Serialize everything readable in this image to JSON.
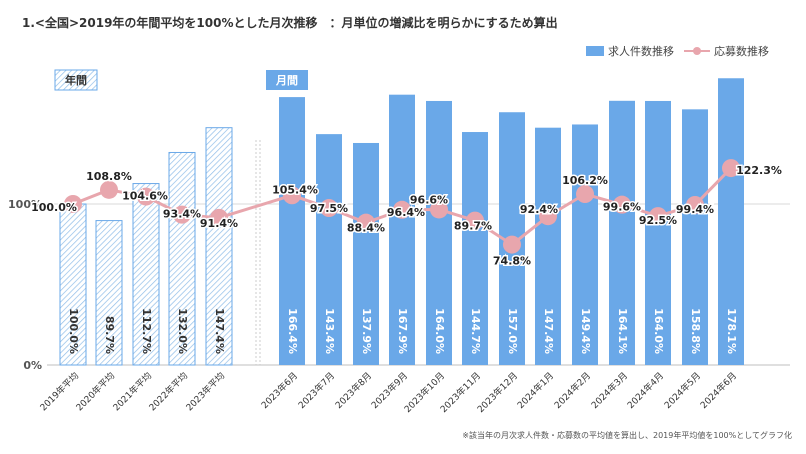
{
  "chart_data": {
    "type": "bar",
    "title": "1.<全国>2019年の年間平均を100%とした月次推移　：月単位の増減比を明らかにするため算出",
    "group_labels": [
      "年間",
      "月間"
    ],
    "y_tick_labels": [
      "0%",
      "100%"
    ],
    "ylim": [
      0,
      190
    ],
    "legend_position": "top-right",
    "grid": "horizontal",
    "categories": [
      "2019年平均",
      "2020年平均",
      "2021年平均",
      "2022年平均",
      "2023年平均",
      "2023年6月",
      "2023年7月",
      "2023年8月",
      "2023年9月",
      "2023年10月",
      "2023年11月",
      "2023年12月",
      "2024年1月",
      "2024年2月",
      "2024年3月",
      "2024年4月",
      "2024年5月",
      "2024年6月"
    ],
    "series": [
      {
        "name": "求人件数推移",
        "type": "bar",
        "color": "#6aa8e8",
        "values": [
          100.0,
          89.7,
          112.7,
          132.0,
          147.4,
          166.4,
          143.4,
          137.9,
          167.9,
          164.0,
          144.7,
          157.0,
          147.4,
          149.4,
          164.1,
          164.0,
          158.8,
          178.1
        ],
        "labels": [
          "100.0%",
          "89.7%",
          "112.7%",
          "132.0%",
          "147.4%",
          "166.4%",
          "143.4%",
          "137.9%",
          "167.9%",
          "164.0%",
          "144.7%",
          "157.0%",
          "147.4%",
          "149.4%",
          "164.1%",
          "164.0%",
          "158.8%",
          "178.1%"
        ]
      },
      {
        "name": "応募数推移",
        "type": "line",
        "color": "#e8a6ad",
        "values": [
          100.0,
          108.8,
          104.6,
          93.4,
          91.4,
          105.4,
          97.5,
          88.4,
          96.4,
          96.6,
          89.7,
          74.8,
          92.4,
          106.2,
          99.6,
          92.5,
          99.4,
          122.3
        ],
        "labels": [
          "100.0%",
          "108.8%",
          "104.6%",
          "93.4%",
          "91.4%",
          "105.4%",
          "97.5%",
          "88.4%",
          "96.4%",
          "96.6%",
          "89.7%",
          "74.8%",
          "92.4%",
          "106.2%",
          "99.6%",
          "92.5%",
          "99.4%",
          "122.3%"
        ]
      }
    ],
    "footnote": "※該当年の月次求人件数・応募数の平均値を算出し、2019年平均値を100%としてグラフ化"
  }
}
